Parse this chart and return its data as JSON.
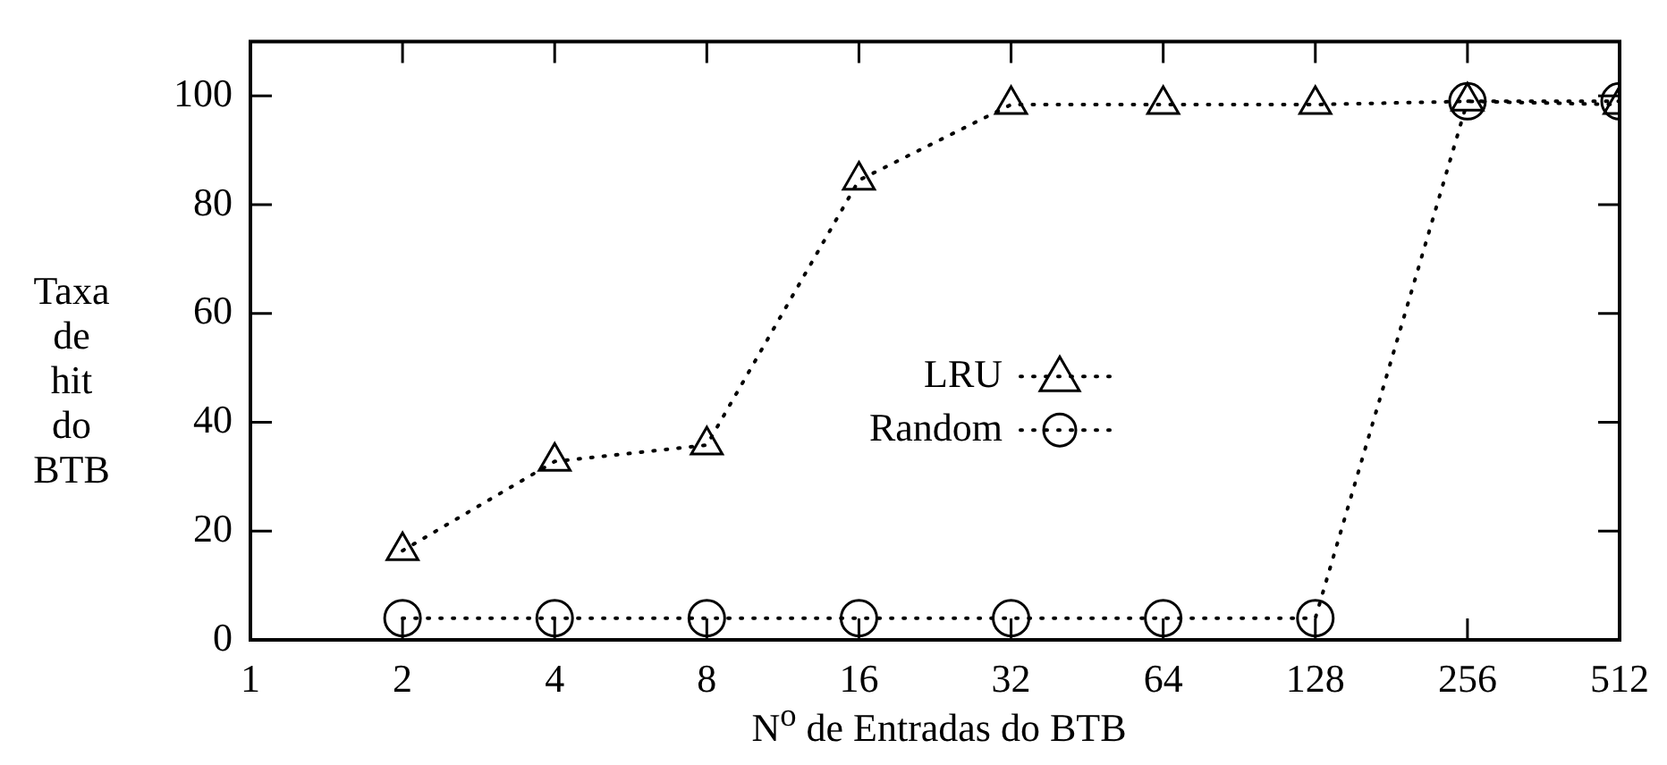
{
  "chart_data": {
    "type": "line",
    "xlabel": "N$^{o}$ de Entradas do BTB",
    "ylabel": "Taxa de hit do BTB",
    "x": [
      2,
      4,
      8,
      16,
      32,
      64,
      128,
      256,
      512
    ],
    "series": [
      {
        "name": "LRU",
        "color": "#000000",
        "marker": "triangle",
        "values": [
          16.4,
          32.8,
          35.8,
          84.5,
          98.4,
          98.4,
          98.4,
          99,
          98.4
        ]
      },
      {
        "name": "Random",
        "color": "#000000",
        "marker": "circle",
        "values": [
          4,
          4,
          4,
          4,
          4,
          4,
          4,
          99,
          99
        ]
      }
    ],
    "log": "x",
    "xlim": [
      1,
      512
    ],
    "xticks": [
      1,
      2,
      4,
      8,
      16,
      32,
      64,
      128,
      256,
      512
    ],
    "ylim": [
      0,
      110
    ],
    "yticks": [
      0,
      20,
      40,
      60,
      80,
      100
    ],
    "grid": false,
    "legend": "right",
    "line_style": "dotted"
  }
}
